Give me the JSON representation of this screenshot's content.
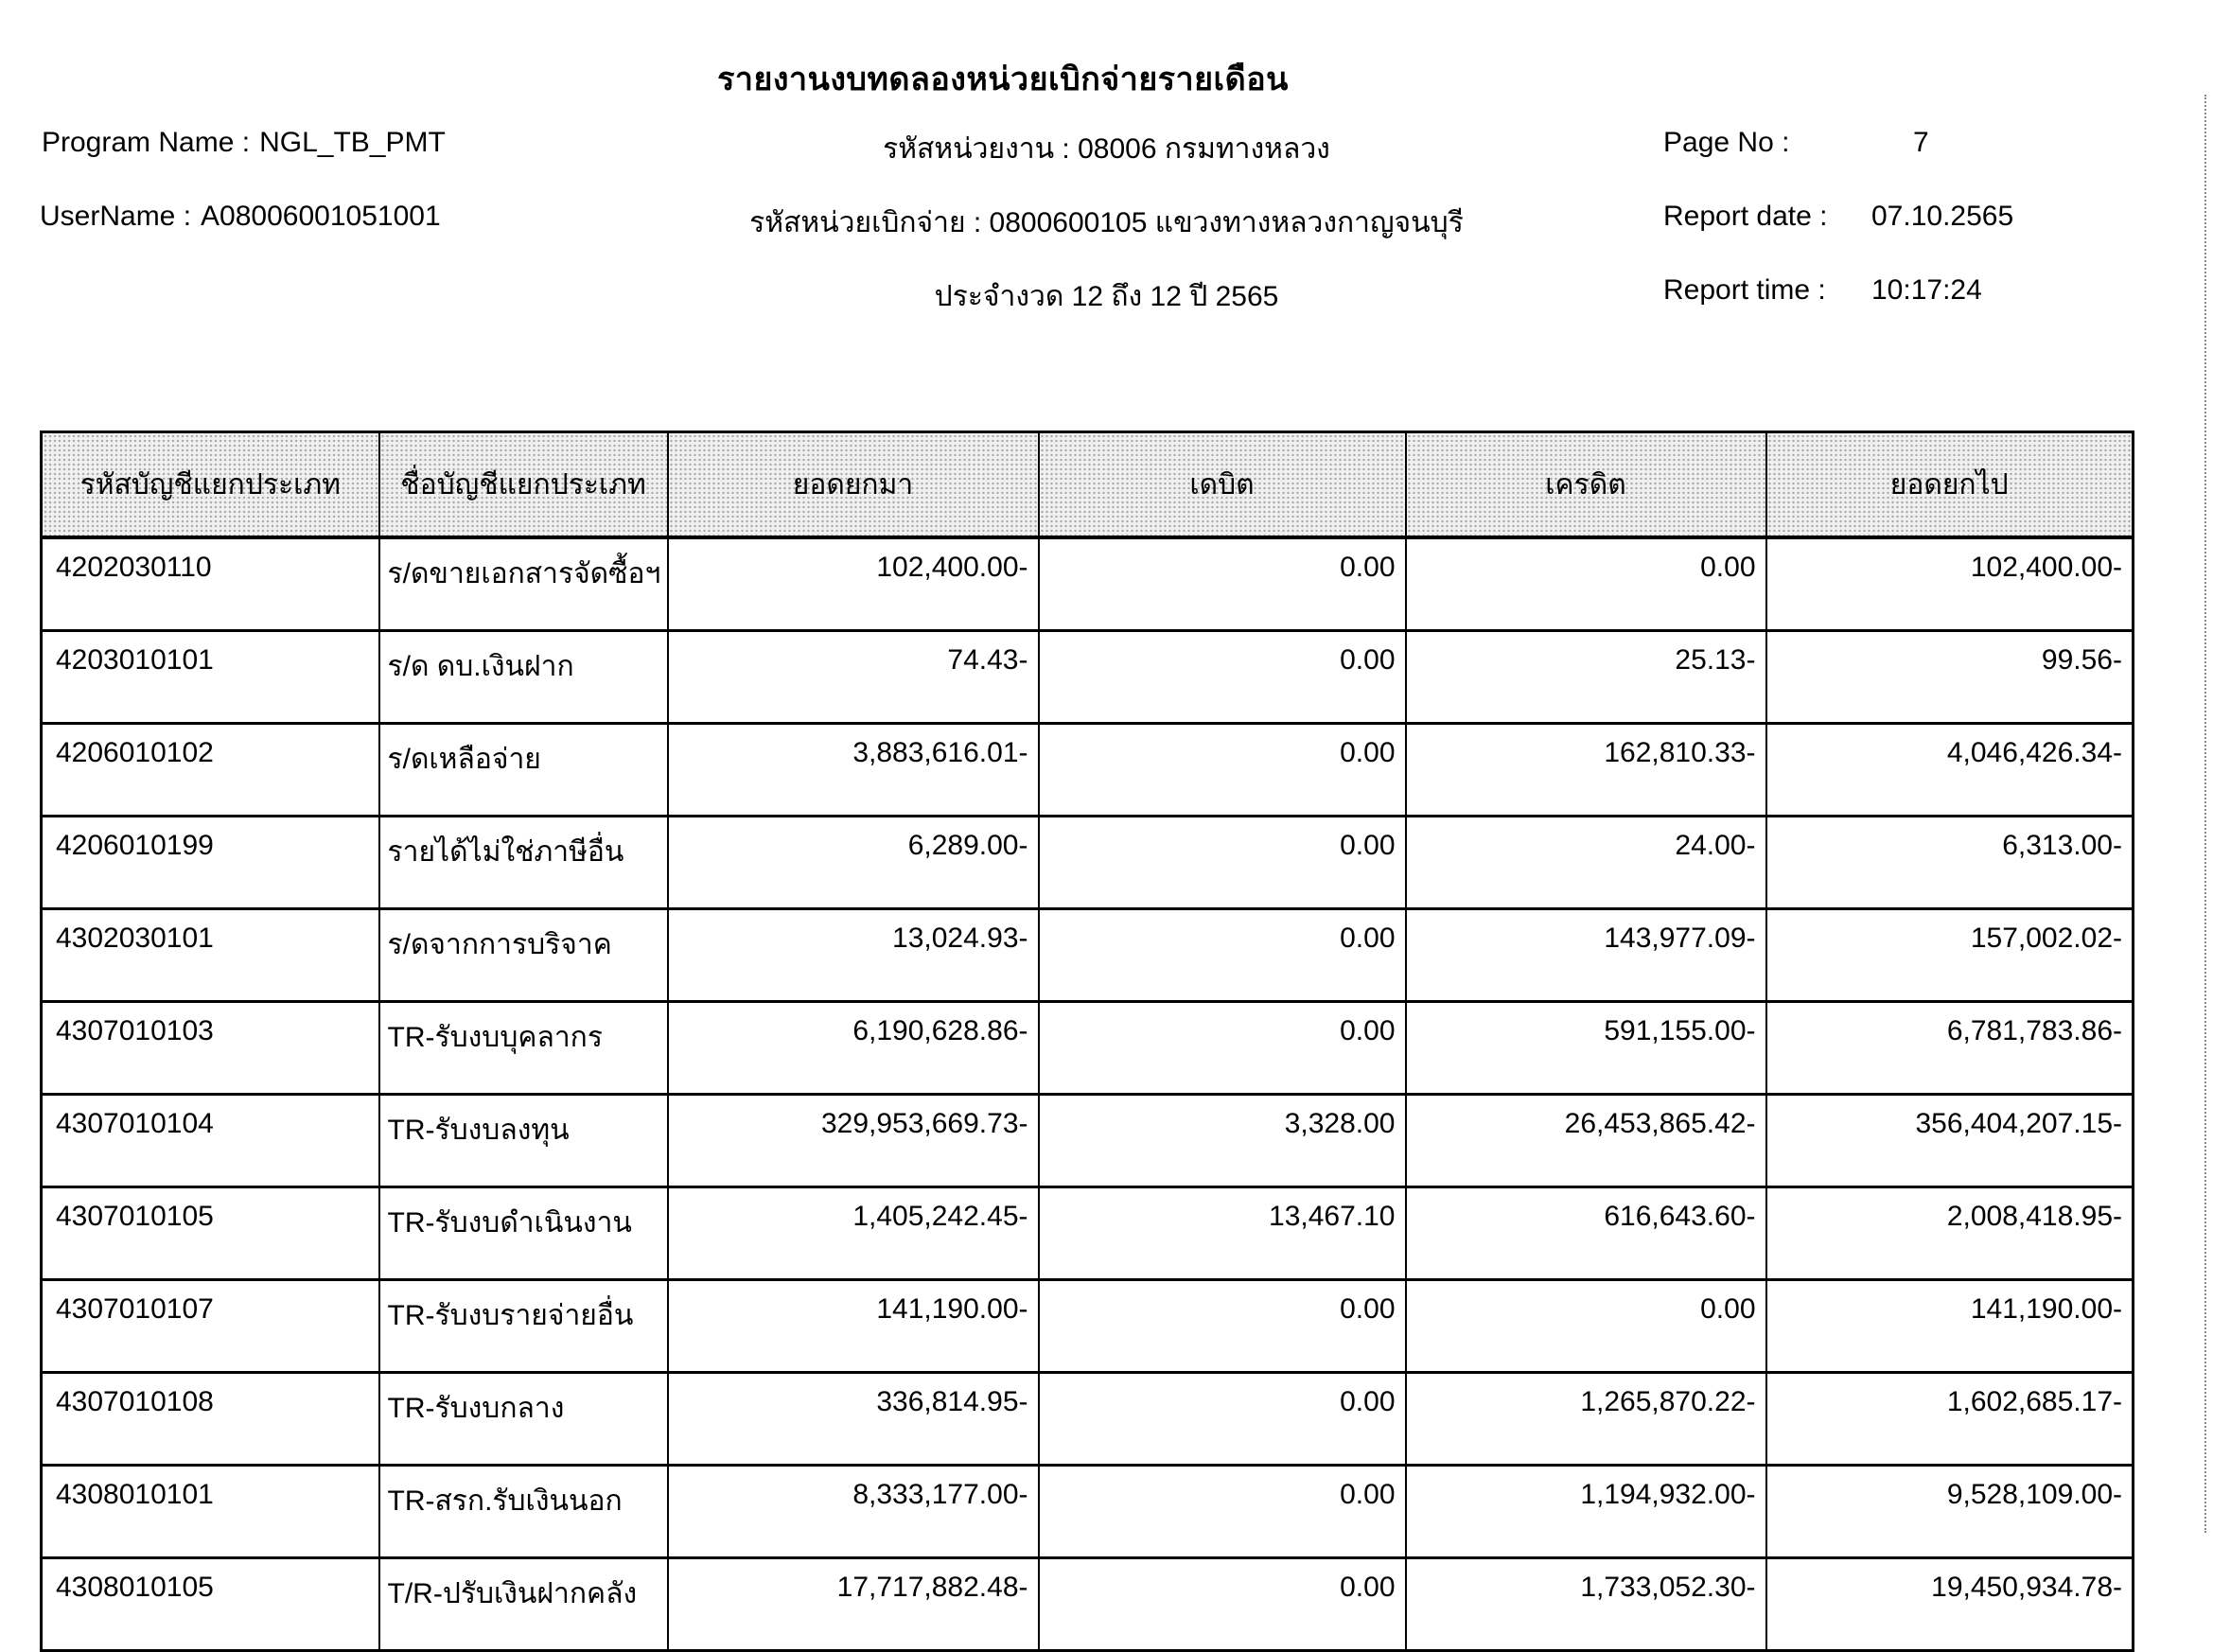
{
  "report": {
    "title": "รายงานงบทดลองหน่วยเบิกจ่ายรายเดือน",
    "meta_left": {
      "program_name_label": "Program Name :",
      "program_name": "NGL_TB_PMT",
      "username_label": "UserName :",
      "username": "A08006001051001"
    },
    "meta_center": {
      "agency_line": "รหัสหน่วยงาน : 08006 กรมทางหลวง",
      "disbursement_line": "รหัสหน่วยเบิกจ่าย : 0800600105 แขวงทางหลวงกาญจนบุรี",
      "period_line": "ประจำงวด 12 ถึง 12 ปี 2565"
    },
    "meta_right": {
      "page_no_label": "Page No :",
      "page_no": "7",
      "report_date_label": "Report date :",
      "report_date": "07.10.2565",
      "report_time_label": "Report time :",
      "report_time": "10:17:24"
    }
  },
  "table": {
    "headers": [
      "รหัสบัญชีแยกประเภท",
      "ชื่อบัญชีแยกประเภท",
      "ยอดยกมา",
      "เดบิต",
      "เครดิต",
      "ยอดยกไป"
    ],
    "rows": [
      [
        "4202030110",
        "ร/ดขายเอกสารจัดซื้อฯ",
        "102,400.00-",
        "0.00",
        "0.00",
        "102,400.00-"
      ],
      [
        "4203010101",
        "ร/ด ดบ.เงินฝาก",
        "74.43-",
        "0.00",
        "25.13-",
        "99.56-"
      ],
      [
        "4206010102",
        "ร/ดเหลือจ่าย",
        "3,883,616.01-",
        "0.00",
        "162,810.33-",
        "4,046,426.34-"
      ],
      [
        "4206010199",
        "รายได้ไม่ใช่ภาษีอื่น",
        "6,289.00-",
        "0.00",
        "24.00-",
        "6,313.00-"
      ],
      [
        "4302030101",
        "ร/ดจากการบริจาค",
        "13,024.93-",
        "0.00",
        "143,977.09-",
        "157,002.02-"
      ],
      [
        "4307010103",
        "TR-รับงบบุคลากร",
        "6,190,628.86-",
        "0.00",
        "591,155.00-",
        "6,781,783.86-"
      ],
      [
        "4307010104",
        "TR-รับงบลงทุน",
        "329,953,669.73-",
        "3,328.00",
        "26,453,865.42-",
        "356,404,207.15-"
      ],
      [
        "4307010105",
        "TR-รับงบดำเนินงาน",
        "1,405,242.45-",
        "13,467.10",
        "616,643.60-",
        "2,008,418.95-"
      ],
      [
        "4307010107",
        "TR-รับงบรายจ่ายอื่น",
        "141,190.00-",
        "0.00",
        "0.00",
        "141,190.00-"
      ],
      [
        "4307010108",
        "TR-รับงบกลาง",
        "336,814.95-",
        "0.00",
        "1,265,870.22-",
        "1,602,685.17-"
      ],
      [
        "4308010101",
        "TR-สรก.รับเงินนอก",
        "8,333,177.00-",
        "0.00",
        "1,194,932.00-",
        "9,528,109.00-"
      ],
      [
        "4308010105",
        "T/R-ปรับเงินฝากคลัง",
        "17,717,882.48-",
        "0.00",
        "1,733,052.30-",
        "19,450,934.78-"
      ]
    ]
  },
  "colors": {
    "paper": "#ffffff",
    "ink": "#000000",
    "table_header_bg": "#e6e6e6"
  }
}
